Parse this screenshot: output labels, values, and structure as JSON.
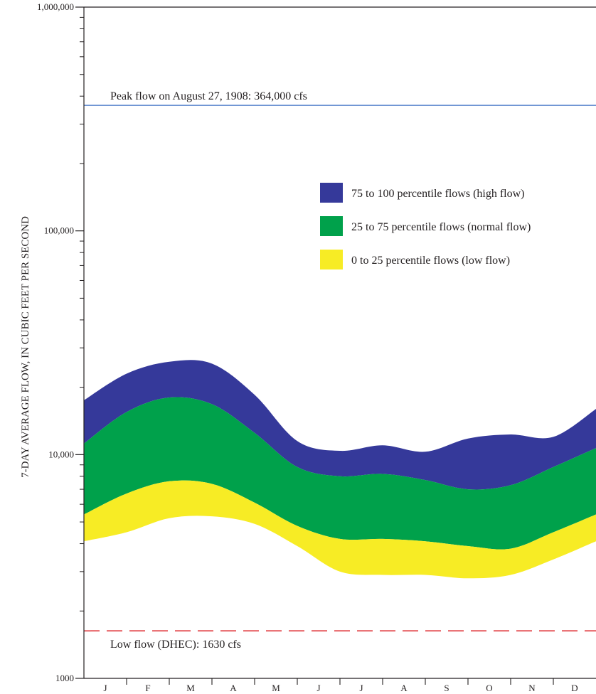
{
  "chart_data": {
    "type": "area",
    "ylabel": "7-DAY AVERAGE FLOW, IN CUBIC FEET PER SECOND",
    "xlabel": "",
    "yscale": "log",
    "ylim": [
      1000,
      1000000
    ],
    "grid": false,
    "legend_position": "right",
    "y_tick_labels": [
      {
        "value": 1000,
        "label": "1000"
      },
      {
        "value": 10000,
        "label": "10,000"
      },
      {
        "value": 100000,
        "label": "100,000"
      },
      {
        "value": 1000000,
        "label": "1,000,000"
      }
    ],
    "categories": [
      "J",
      "F",
      "M",
      "A",
      "M",
      "J",
      "J",
      "A",
      "S",
      "O",
      "N",
      "D"
    ],
    "boundaries": {
      "p0": [
        4100,
        4500,
        5200,
        5300,
        4900,
        3900,
        3000,
        2900,
        2900,
        2800,
        2900,
        3400,
        4100
      ],
      "p25": [
        5400,
        6700,
        7600,
        7400,
        6100,
        4800,
        4200,
        4200,
        4100,
        3900,
        3800,
        4500,
        5400
      ],
      "p75": [
        11200,
        15500,
        18000,
        16800,
        12500,
        8800,
        8000,
        8200,
        7700,
        7000,
        7300,
        8800,
        10700
      ],
      "p100": [
        17500,
        23000,
        26000,
        25500,
        18500,
        11500,
        10400,
        11000,
        10300,
        11800,
        12300,
        12000,
        16000
      ]
    },
    "series": [
      {
        "name": "75 to 100 percentile flows (high flow)",
        "lower": "p75",
        "upper": "p100",
        "color": "#35399a"
      },
      {
        "name": "25 to 75 percentile flows (normal flow)",
        "lower": "p25",
        "upper": "p75",
        "color": "#00a14b"
      },
      {
        "name": "0 to 25 percentile flows (low flow)",
        "lower": "p0",
        "upper": "p25",
        "color": "#f7ec25"
      }
    ],
    "reference_lines": [
      {
        "label": "Peak flow on August 27, 1908:  364,000 cfs",
        "value": 364000,
        "color": "#3b6fc4",
        "style": "solid"
      },
      {
        "label": "Low flow (DHEC):  1630 cfs",
        "value": 1630,
        "color": "#e03a3e",
        "style": "dashed"
      }
    ]
  }
}
